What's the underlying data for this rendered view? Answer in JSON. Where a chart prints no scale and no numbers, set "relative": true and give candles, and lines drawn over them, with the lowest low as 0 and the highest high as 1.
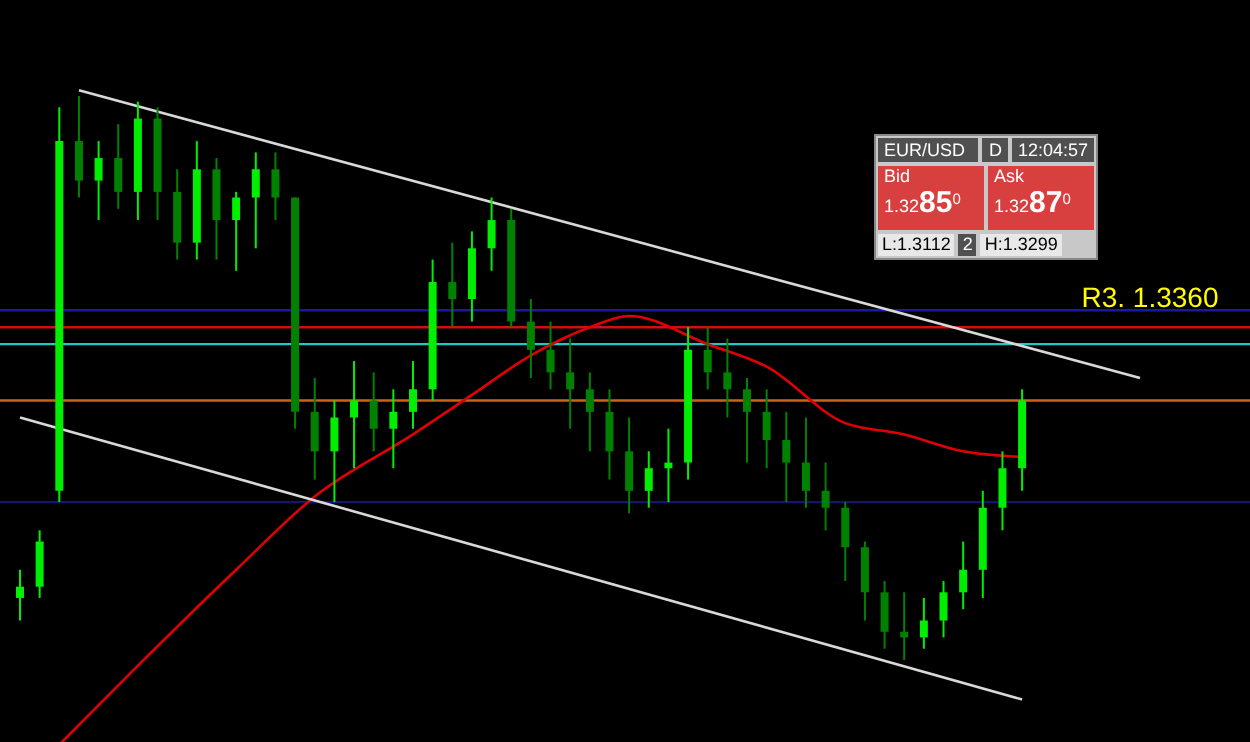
{
  "chart_data": {
    "type": "candlestick",
    "relative": true,
    "colors": [
      "#00ee00",
      "#00ee00",
      "#00ee00",
      "#008200",
      "#00ee00",
      "#008200",
      "#00ee00",
      "#008200",
      "#008200",
      "#00ee00",
      "#008200",
      "#00ee00",
      "#00ee00",
      "#008200",
      "#008200",
      "#008200",
      "#00ee00",
      "#00ee00",
      "#008200",
      "#00ee00",
      "#00ee00",
      "#00ee00",
      "#008200",
      "#00ee00",
      "#00ee00",
      "#008200",
      "#008200",
      "#008200",
      "#008200",
      "#008200",
      "#008200",
      "#008200",
      "#00ee00",
      "#00ee00",
      "#00ee00",
      "#008200",
      "#008200",
      "#008200",
      "#008200",
      "#008200",
      "#008200",
      "#008200",
      "#008200",
      "#008200",
      "#008200",
      "#008200",
      "#00ee00",
      "#00ee00",
      "#00ee00",
      "#00ee00",
      "#00ee00",
      "#00ee00",
      null,
      null,
      null,
      null,
      null,
      null
    ],
    "categories": [
      null,
      null,
      null,
      null,
      null,
      null,
      null,
      null,
      null,
      null,
      null,
      null,
      null,
      null,
      null,
      null,
      null,
      null,
      null,
      null,
      null,
      null,
      null,
      null,
      null,
      null,
      null,
      null,
      null,
      null,
      null,
      null,
      null,
      null,
      null,
      null,
      null,
      null,
      null,
      null,
      null,
      null,
      null,
      null,
      null,
      null,
      null,
      null,
      null,
      null,
      null,
      null,
      null,
      null,
      null,
      null,
      null,
      null
    ],
    "ohlc": [
      [
        0.11,
        0.16,
        0.07,
        0.13
      ],
      [
        0.13,
        0.23,
        0.11,
        0.21
      ],
      [
        0.3,
        0.98,
        0.28,
        0.92
      ],
      [
        0.92,
        1.0,
        0.82,
        0.85
      ],
      [
        0.85,
        0.92,
        0.78,
        0.89
      ],
      [
        0.89,
        0.95,
        0.8,
        0.83
      ],
      [
        0.83,
        0.99,
        0.78,
        0.96
      ],
      [
        0.96,
        0.98,
        0.78,
        0.83
      ],
      [
        0.83,
        0.87,
        0.71,
        0.74
      ],
      [
        0.74,
        0.92,
        0.71,
        0.87
      ],
      [
        0.87,
        0.89,
        0.71,
        0.78
      ],
      [
        0.78,
        0.83,
        0.69,
        0.82
      ],
      [
        0.82,
        0.9,
        0.73,
        0.87
      ],
      [
        0.87,
        0.9,
        0.78,
        0.82
      ],
      [
        0.82,
        0.82,
        0.41,
        0.44
      ],
      [
        0.44,
        0.5,
        0.32,
        0.37
      ],
      [
        0.37,
        0.46,
        0.28,
        0.43
      ],
      [
        0.43,
        0.53,
        0.34,
        0.46
      ],
      [
        0.46,
        0.51,
        0.37,
        0.41
      ],
      [
        0.41,
        0.48,
        0.34,
        0.44
      ],
      [
        0.44,
        0.53,
        0.41,
        0.48
      ],
      [
        0.48,
        0.71,
        0.46,
        0.67
      ],
      [
        0.67,
        0.74,
        0.59,
        0.64
      ],
      [
        0.64,
        0.76,
        0.6,
        0.73
      ],
      [
        0.73,
        0.82,
        0.69,
        0.78
      ],
      [
        0.78,
        0.8,
        0.59,
        0.6
      ],
      [
        0.6,
        0.64,
        0.5,
        0.55
      ],
      [
        0.55,
        0.6,
        0.48,
        0.51
      ],
      [
        0.51,
        0.57,
        0.41,
        0.48
      ],
      [
        0.48,
        0.51,
        0.37,
        0.44
      ],
      [
        0.44,
        0.48,
        0.32,
        0.37
      ],
      [
        0.37,
        0.43,
        0.26,
        0.3
      ],
      [
        0.3,
        0.37,
        0.27,
        0.34
      ],
      [
        0.34,
        0.41,
        0.28,
        0.35
      ],
      [
        0.35,
        0.59,
        0.32,
        0.55
      ],
      [
        0.55,
        0.59,
        0.48,
        0.51
      ],
      [
        0.51,
        0.57,
        0.43,
        0.48
      ],
      [
        0.48,
        0.5,
        0.35,
        0.44
      ],
      [
        0.44,
        0.48,
        0.34,
        0.39
      ],
      [
        0.39,
        0.44,
        0.28,
        0.35
      ],
      [
        0.35,
        0.43,
        0.27,
        0.3
      ],
      [
        0.3,
        0.35,
        0.23,
        0.27
      ],
      [
        0.27,
        0.28,
        0.14,
        0.2
      ],
      [
        0.2,
        0.21,
        0.07,
        0.12
      ],
      [
        0.12,
        0.14,
        0.02,
        0.05
      ],
      [
        0.05,
        0.12,
        0.0,
        0.04
      ],
      [
        0.04,
        0.11,
        0.02,
        0.07
      ],
      [
        0.07,
        0.14,
        0.04,
        0.12
      ],
      [
        0.12,
        0.21,
        0.09,
        0.16
      ],
      [
        0.16,
        0.3,
        0.11,
        0.27
      ],
      [
        0.27,
        0.37,
        0.23,
        0.34
      ],
      [
        0.34,
        0.48,
        0.3,
        0.46
      ],
      null,
      null,
      null,
      null,
      null,
      null
    ],
    "series": [
      {
        "type": "line",
        "color": "#e00000",
        "values": [
          null,
          null,
          -0.15,
          null,
          null,
          null,
          -0.01,
          null,
          null,
          null,
          null,
          0.16,
          null,
          null,
          null,
          0.29,
          null,
          null,
          null,
          null,
          0.4,
          null,
          null,
          0.47,
          null,
          null,
          0.54,
          null,
          null,
          0.59,
          null,
          0.61,
          null,
          null,
          null,
          0.56,
          null,
          null,
          0.52,
          null,
          null,
          null,
          0.42,
          null,
          null,
          0.4,
          null,
          null,
          0.37,
          null,
          null,
          0.36,
          null,
          null,
          null,
          null,
          null,
          null
        ]
      },
      {
        "type": "line",
        "color": "#d8d8d8",
        "values": [
          null,
          null,
          null,
          1.01,
          null,
          null,
          null,
          null,
          null,
          null,
          null,
          null,
          null,
          null,
          null,
          null,
          null,
          null,
          null,
          null,
          null,
          null,
          null,
          null,
          null,
          null,
          null,
          null,
          null,
          null,
          null,
          null,
          null,
          null,
          null,
          null,
          null,
          null,
          null,
          null,
          null,
          null,
          null,
          null,
          null,
          null,
          null,
          null,
          null,
          null,
          null,
          null,
          null,
          null,
          null,
          null,
          null,
          0.5
        ]
      },
      {
        "type": "line",
        "color": "#d8d8d8",
        "values": [
          0.43,
          null,
          null,
          null,
          null,
          null,
          null,
          null,
          null,
          null,
          null,
          null,
          null,
          null,
          null,
          null,
          null,
          null,
          null,
          null,
          null,
          null,
          null,
          null,
          null,
          null,
          null,
          null,
          null,
          null,
          null,
          null,
          null,
          null,
          null,
          null,
          null,
          null,
          null,
          null,
          null,
          null,
          null,
          null,
          null,
          null,
          null,
          null,
          null,
          null,
          null,
          -0.07,
          null,
          null,
          null,
          null,
          null,
          null
        ]
      }
    ],
    "ref_lines": [
      {
        "axis": "y",
        "value": 0.62,
        "color": "#1a1aa0"
      },
      {
        "axis": "y",
        "value": 0.59,
        "color": "#d01010",
        "label": "R3. 1.3360"
      },
      {
        "axis": "y",
        "value": 0.56,
        "color": "#20c8c8"
      },
      {
        "axis": "y",
        "value": 0.46,
        "color": "#c86414"
      },
      {
        "axis": "y",
        "value": 0.28,
        "color": "#141478"
      }
    ],
    "annotations": [
      "EUR/USD",
      "D",
      "12:04:57",
      "Bid",
      "1.32",
      "85",
      "0",
      "Ask",
      "1.32",
      "87",
      "0",
      "L:1.3112",
      "2",
      "H:1.3299"
    ]
  }
}
